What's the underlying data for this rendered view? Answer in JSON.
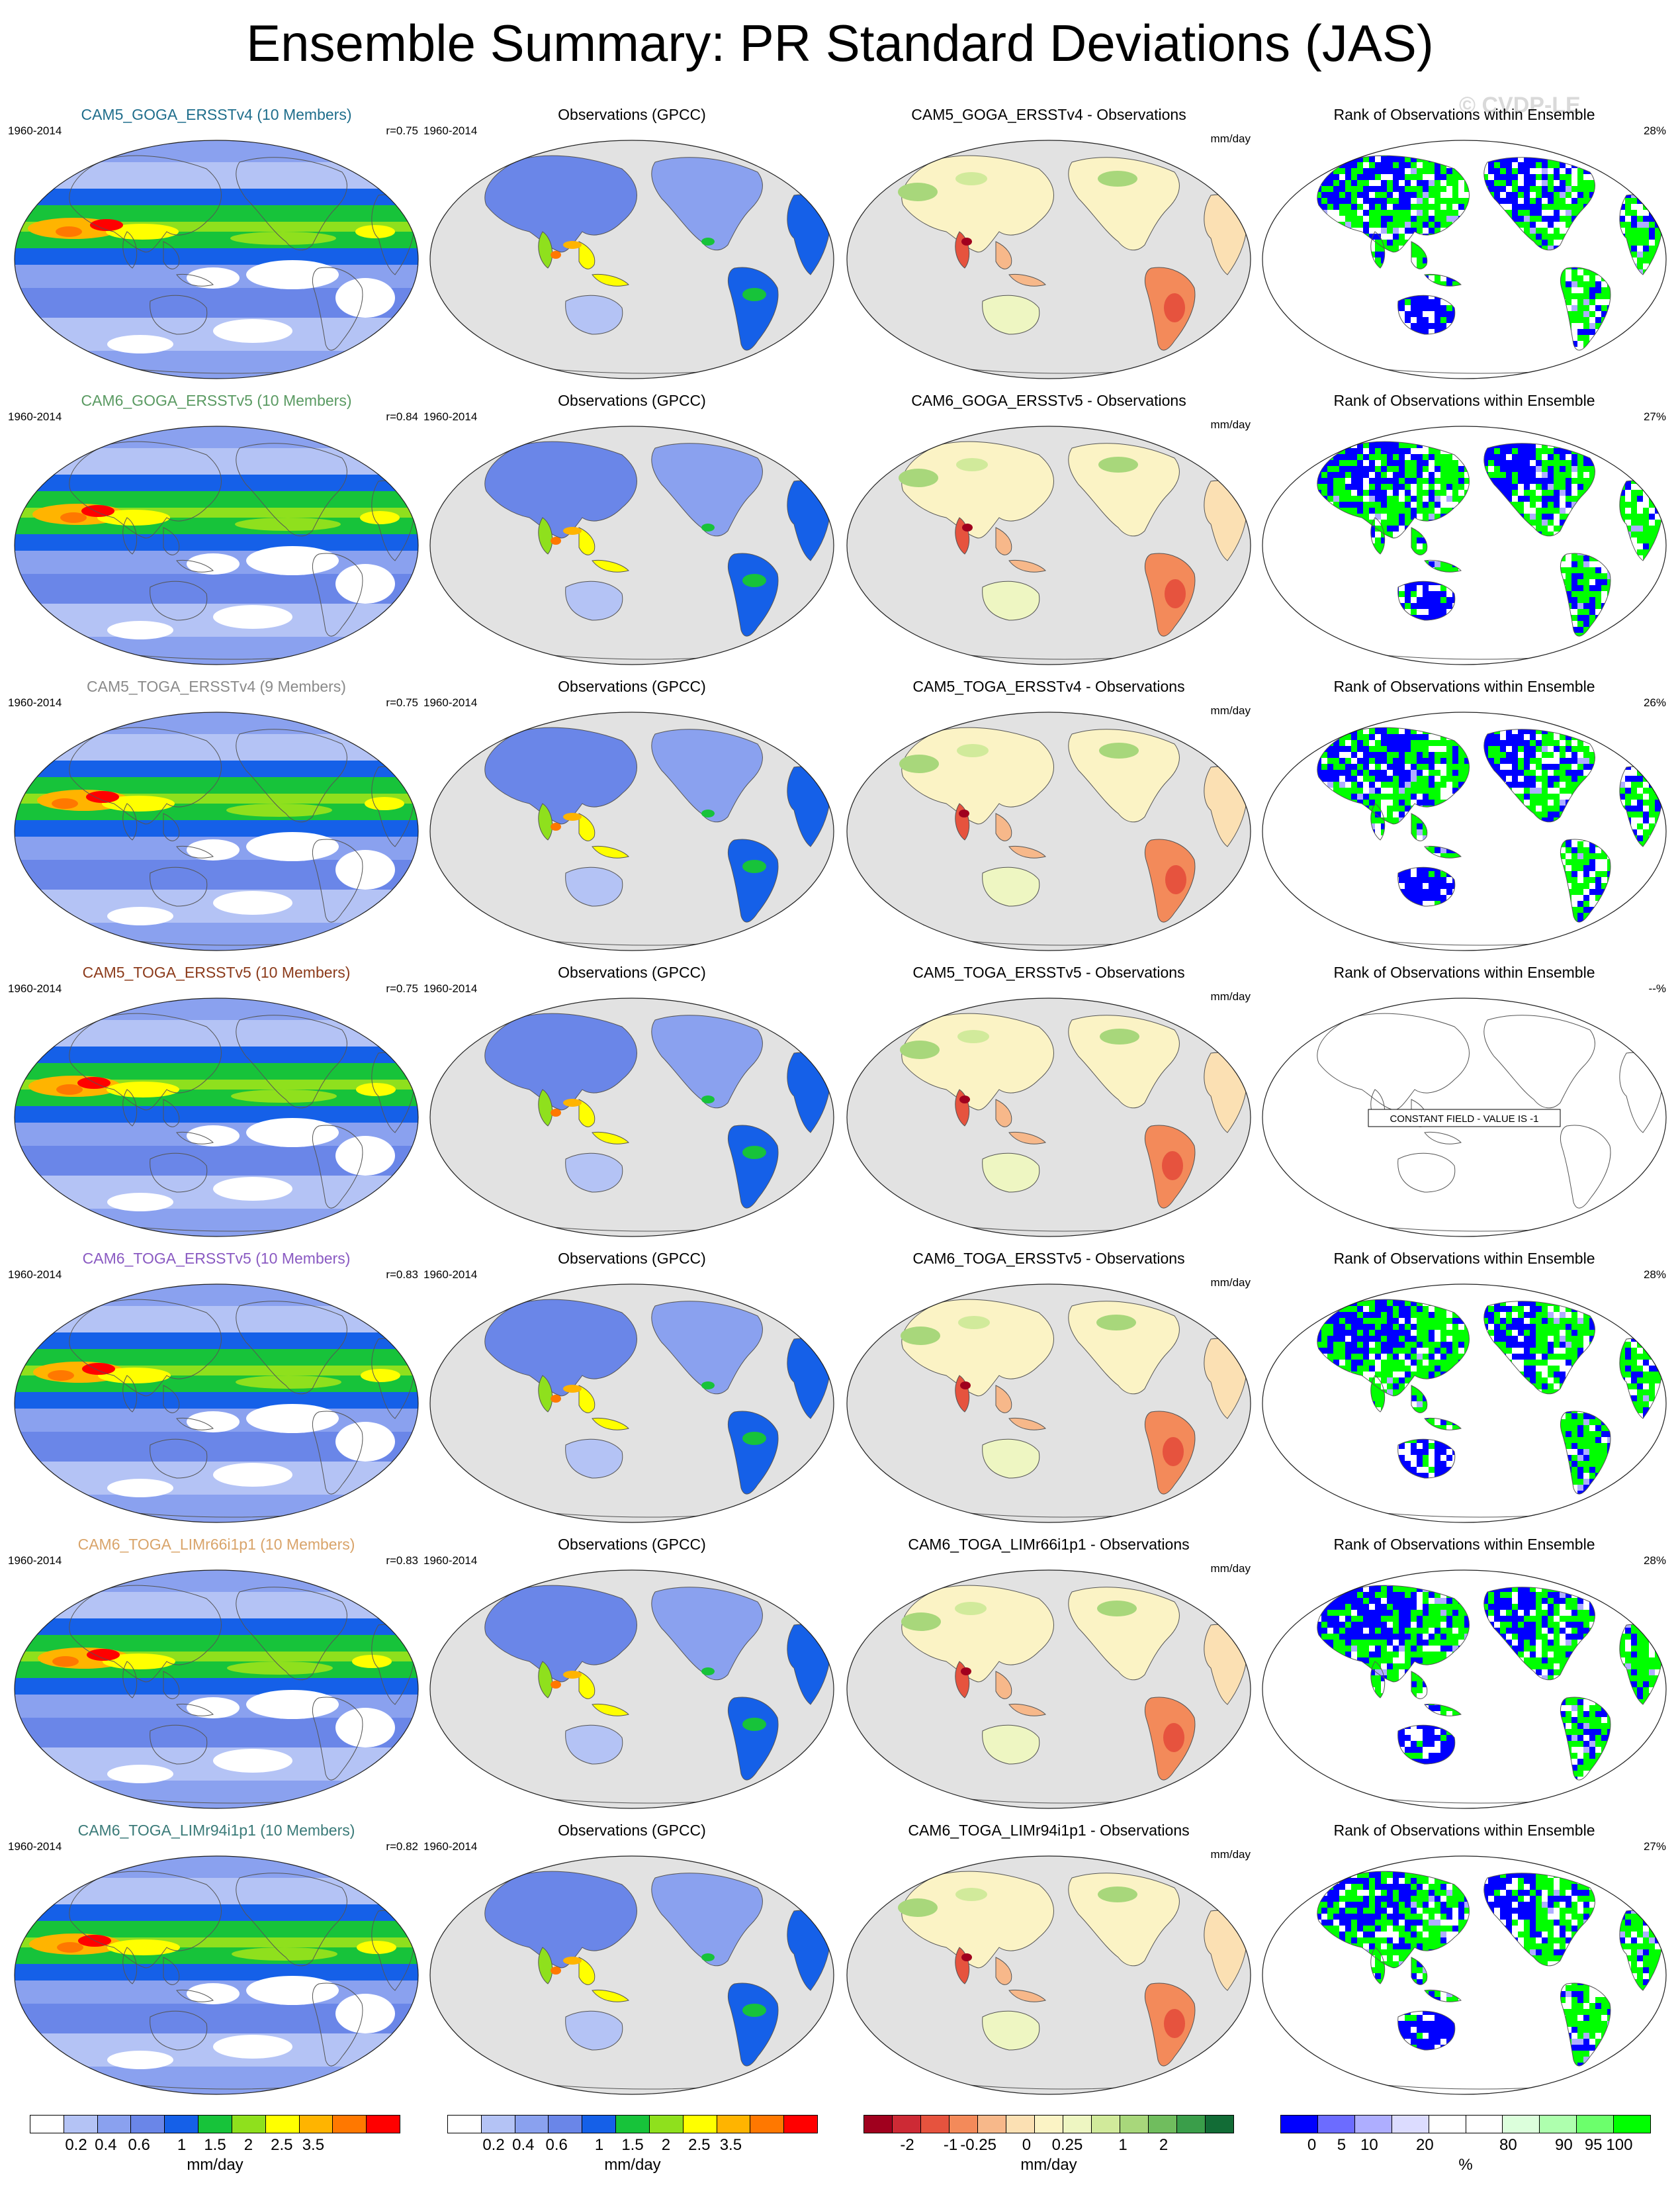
{
  "title": "Ensemble Summary: PR Standard Deviations (JAS)",
  "watermark": "© CVDP-LE",
  "colors": {
    "ocean_gray": "#e2e2e2",
    "ens_scale": [
      "#ffffff",
      "#b4c3f5",
      "#8aa1ef",
      "#6a86e8",
      "#1560e8",
      "#17c33a",
      "#8fe01d",
      "#ffff00",
      "#ffb400",
      "#ff7800",
      "#ff0000"
    ],
    "diff_scale": [
      "#a0001e",
      "#cd2a35",
      "#e6533e",
      "#f38a5a",
      "#f7b88a",
      "#fbe0b3",
      "#fbf3c5",
      "#eef6c2",
      "#d1ea9b",
      "#a8d77b",
      "#70bd5e",
      "#3a9e4a",
      "#126c36"
    ],
    "rank_scale": [
      "#0000ff",
      "#6c6cff",
      "#aeaeff",
      "#dcdcff",
      "#ffffff",
      "#ffffff",
      "#dcffdc",
      "#aeffae",
      "#6cff6c",
      "#00ff00"
    ]
  },
  "rows": [
    {
      "model_label": "CAM5_GOGA_ERSSTv4 (10 Members)",
      "label_color": "#1f6e8c",
      "period": "1960-2014",
      "r": "r=0.75",
      "obs_title": "Observations (GPCC)",
      "obs_period": "1960-2014",
      "diff_title": "CAM5_GOGA_ERSSTv4 - Observations",
      "diff_unit": "mm/day",
      "rank_title": "Rank of Observations within Ensemble",
      "rank_pct": "28%",
      "constant_field": false
    },
    {
      "model_label": "CAM6_GOGA_ERSSTv5 (10 Members)",
      "label_color": "#5a9a62",
      "period": "1960-2014",
      "r": "r=0.84",
      "obs_title": "Observations (GPCC)",
      "obs_period": "1960-2014",
      "diff_title": "CAM6_GOGA_ERSSTv5 - Observations",
      "diff_unit": "mm/day",
      "rank_title": "Rank of Observations within Ensemble",
      "rank_pct": "27%",
      "constant_field": false
    },
    {
      "model_label": "CAM5_TOGA_ERSSTv4 (9 Members)",
      "label_color": "#8a8a8a",
      "period": "1960-2014",
      "r": "r=0.75",
      "obs_title": "Observations (GPCC)",
      "obs_period": "1960-2014",
      "diff_title": "CAM5_TOGA_ERSSTv4 - Observations",
      "diff_unit": "mm/day",
      "rank_title": "Rank of Observations within Ensemble",
      "rank_pct": "26%",
      "constant_field": false
    },
    {
      "model_label": "CAM5_TOGA_ERSSTv5 (10 Members)",
      "label_color": "#8b3a1a",
      "period": "1960-2014",
      "r": "r=0.75",
      "obs_title": "Observations (GPCC)",
      "obs_period": "1960-2014",
      "diff_title": "CAM5_TOGA_ERSSTv5 - Observations",
      "diff_unit": "mm/day",
      "rank_title": "Rank of Observations within Ensemble",
      "rank_pct": "--%",
      "constant_field": true,
      "constant_text": "CONSTANT FIELD - VALUE IS -1"
    },
    {
      "model_label": "CAM6_TOGA_ERSSTv5 (10 Members)",
      "label_color": "#8a5ac2",
      "period": "1960-2014",
      "r": "r=0.83",
      "obs_title": "Observations (GPCC)",
      "obs_period": "1960-2014",
      "diff_title": "CAM6_TOGA_ERSSTv5 - Observations",
      "diff_unit": "mm/day",
      "rank_title": "Rank of Observations within Ensemble",
      "rank_pct": "28%",
      "constant_field": false
    },
    {
      "model_label": "CAM6_TOGA_LIMr66i1p1 (10 Members)",
      "label_color": "#d9a46a",
      "period": "1960-2014",
      "r": "r=0.83",
      "obs_title": "Observations (GPCC)",
      "obs_period": "1960-2014",
      "diff_title": "CAM6_TOGA_LIMr66i1p1 - Observations",
      "diff_unit": "mm/day",
      "rank_title": "Rank of Observations within Ensemble",
      "rank_pct": "28%",
      "constant_field": false
    },
    {
      "model_label": "CAM6_TOGA_LIMr94i1p1 (10 Members)",
      "label_color": "#3a7a78",
      "period": "1960-2014",
      "r": "r=0.82",
      "obs_title": "Observations (GPCC)",
      "obs_period": "1960-2014",
      "diff_title": "CAM6_TOGA_LIMr94i1p1 - Observations",
      "diff_unit": "mm/day",
      "rank_title": "Rank of Observations within Ensemble",
      "rank_pct": "27%",
      "constant_field": false
    }
  ],
  "legends": [
    {
      "boxes": [
        "#ffffff",
        "#b4c3f5",
        "#8aa1ef",
        "#6a86e8",
        "#1560e8",
        "#17c33a",
        "#8fe01d",
        "#ffff00",
        "#ffb400",
        "#ff7800",
        "#ff0000"
      ],
      "ticks": [
        "0.2",
        "0.4",
        "0.6",
        "1",
        "1.5",
        "2",
        "2.5",
        "3.5"
      ],
      "unit": "mm/day"
    },
    {
      "boxes": [
        "#ffffff",
        "#b4c3f5",
        "#8aa1ef",
        "#6a86e8",
        "#1560e8",
        "#17c33a",
        "#8fe01d",
        "#ffff00",
        "#ffb400",
        "#ff7800",
        "#ff0000"
      ],
      "ticks": [
        "0.2",
        "0.4",
        "0.6",
        "1",
        "1.5",
        "2",
        "2.5",
        "3.5"
      ],
      "unit": "mm/day"
    },
    {
      "boxes": [
        "#a0001e",
        "#cd2a35",
        "#e6533e",
        "#f38a5a",
        "#f7b88a",
        "#fbe0b3",
        "#fbf3c5",
        "#eef6c2",
        "#d1ea9b",
        "#a8d77b",
        "#70bd5e",
        "#3a9e4a",
        "#126c36"
      ],
      "ticks": [
        "-2",
        "-1",
        "-0.25",
        "0",
        "0.25",
        "1",
        "2"
      ],
      "unit": "mm/day"
    },
    {
      "boxes": [
        "#0000ff",
        "#6c6cff",
        "#aeaeff",
        "#dcdcff",
        "#ffffff",
        "#ffffff",
        "#dcffdc",
        "#aeffae",
        "#6cff6c",
        "#00ff00"
      ],
      "ticks": [
        "0",
        "5",
        "10",
        "20",
        "80",
        "90",
        "95",
        "100"
      ],
      "unit": "%"
    }
  ]
}
